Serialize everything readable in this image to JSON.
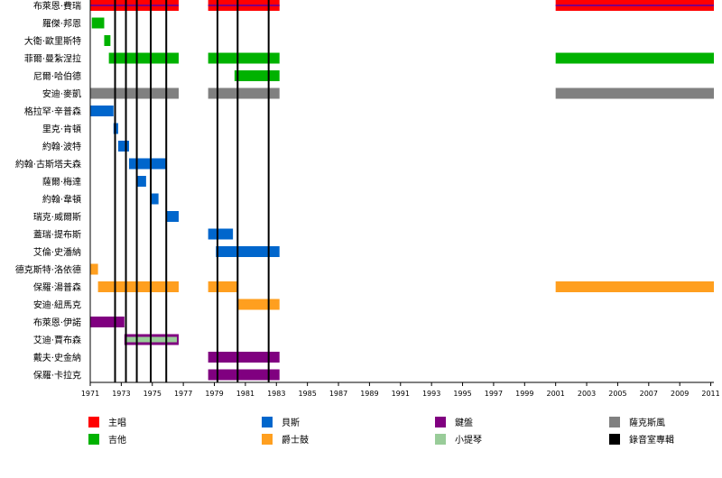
{
  "chart_data": {
    "type": "timeline",
    "x_range": [
      1971,
      2011.2
    ],
    "x_ticks": [
      1971,
      1973,
      1975,
      1977,
      1979,
      1981,
      1983,
      1985,
      1987,
      1989,
      1991,
      1993,
      1995,
      1997,
      1999,
      2001,
      2003,
      2005,
      2007,
      2009,
      2011
    ],
    "members": [
      {
        "name": "布萊恩·費瑞",
        "bars": [
          {
            "role": "vocal",
            "start": 1971,
            "end": 1976.7
          },
          {
            "role": "vocal",
            "start": 1978.6,
            "end": 1983.2
          },
          {
            "role": "vocal",
            "start": 2001,
            "end": 2011.2
          }
        ],
        "accent": "keys"
      },
      {
        "name": "羅傑·邦恩",
        "bars": [
          {
            "role": "guitar",
            "start": 1971.1,
            "end": 1971.9
          }
        ]
      },
      {
        "name": "大衛·歐里斯特",
        "bars": [
          {
            "role": "guitar",
            "start": 1971.9,
            "end": 1972.3
          }
        ]
      },
      {
        "name": "菲爾·曼紮涅拉",
        "bars": [
          {
            "role": "guitar",
            "start": 1972.2,
            "end": 1976.7
          },
          {
            "role": "guitar",
            "start": 1978.6,
            "end": 1983.2
          },
          {
            "role": "guitar",
            "start": 2001,
            "end": 2011.2
          }
        ]
      },
      {
        "name": "尼爾·哈伯德",
        "bars": [
          {
            "role": "guitar",
            "start": 1980.3,
            "end": 1983.2
          }
        ]
      },
      {
        "name": "安迪·麥凱",
        "bars": [
          {
            "role": "sax",
            "start": 1971,
            "end": 1976.7
          },
          {
            "role": "sax",
            "start": 1978.6,
            "end": 1983.2
          },
          {
            "role": "sax",
            "start": 2001,
            "end": 2011.2
          }
        ]
      },
      {
        "name": "格拉罕·辛普森",
        "bars": [
          {
            "role": "bass",
            "start": 1971,
            "end": 1972.5
          }
        ]
      },
      {
        "name": "里克·肯頓",
        "bars": [
          {
            "role": "bass",
            "start": 1972.5,
            "end": 1972.8
          }
        ]
      },
      {
        "name": "約翰·波特",
        "bars": [
          {
            "role": "bass",
            "start": 1972.8,
            "end": 1973.5
          }
        ]
      },
      {
        "name": "約翰·古斯塔夫森",
        "bars": [
          {
            "role": "bass",
            "start": 1973.5,
            "end": 1975.9
          }
        ]
      },
      {
        "name": "薩爾·梅達",
        "bars": [
          {
            "role": "bass",
            "start": 1974,
            "end": 1974.6
          }
        ]
      },
      {
        "name": "約翰·韋頓",
        "bars": [
          {
            "role": "bass",
            "start": 1974.9,
            "end": 1975.4
          }
        ]
      },
      {
        "name": "瑞克·威爾斯",
        "bars": [
          {
            "role": "bass",
            "start": 1975.9,
            "end": 1976.7
          }
        ]
      },
      {
        "name": "蓋瑞·提布斯",
        "bars": [
          {
            "role": "bass",
            "start": 1978.6,
            "end": 1980.2
          }
        ]
      },
      {
        "name": "艾倫·史潘納",
        "bars": [
          {
            "role": "bass",
            "start": 1979.1,
            "end": 1983.2
          }
        ]
      },
      {
        "name": "德克斯特·洛依德",
        "bars": [
          {
            "role": "drums",
            "start": 1971,
            "end": 1971.5
          }
        ]
      },
      {
        "name": "保羅·湯普森",
        "bars": [
          {
            "role": "drums",
            "start": 1971.5,
            "end": 1976.7
          },
          {
            "role": "drums",
            "start": 1978.6,
            "end": 1980.5
          },
          {
            "role": "drums",
            "start": 2001,
            "end": 2011.2
          }
        ]
      },
      {
        "name": "安迪·紐馬克",
        "bars": [
          {
            "role": "drums",
            "start": 1980.5,
            "end": 1983.2
          }
        ]
      },
      {
        "name": "布萊恩·伊諾",
        "bars": [
          {
            "role": "keys",
            "start": 1971,
            "end": 1973.2
          }
        ]
      },
      {
        "name": "艾迪·賈布森",
        "bars": [
          {
            "role": "keys",
            "start": 1973.2,
            "end": 1976.7,
            "inner": "violin"
          }
        ]
      },
      {
        "name": "戴夫·史金納",
        "bars": [
          {
            "role": "keys",
            "start": 1978.6,
            "end": 1983.2
          }
        ]
      },
      {
        "name": "保羅·卡拉克",
        "bars": [
          {
            "role": "keys",
            "start": 1978.6,
            "end": 1983.2
          }
        ]
      }
    ],
    "album_years": [
      1972.6,
      1973.3,
      1974,
      1974.9,
      1975.9,
      1979.2,
      1980.5,
      1982.5
    ],
    "legend": [
      {
        "key": "vocal",
        "label": "主唱"
      },
      {
        "key": "guitar",
        "label": "吉他"
      },
      {
        "key": "bass",
        "label": "貝斯"
      },
      {
        "key": "drums",
        "label": "爵士鼓"
      },
      {
        "key": "keys",
        "label": "鍵盤"
      },
      {
        "key": "violin",
        "label": "小提琴"
      },
      {
        "key": "sax",
        "label": "薩克斯風"
      },
      {
        "key": "album",
        "label": "錄音室專輯"
      }
    ],
    "colors": {
      "vocal": "#ff0000",
      "guitar": "#00b200",
      "bass": "#0066cc",
      "drums": "#ff9f1f",
      "keys": "#800080",
      "violin": "#99cc99",
      "sax": "#808080",
      "album": "#000000"
    }
  }
}
